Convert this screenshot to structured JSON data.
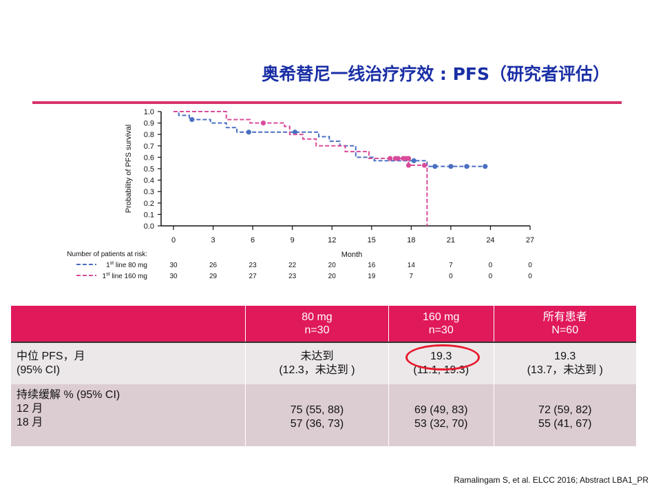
{
  "title": "奥希替尼一线治疗疗效 : PFS（研究者评估）",
  "chart_data": {
    "type": "line",
    "ylabel": "Probability of  PFS survival",
    "xlabel": "Month",
    "xlim": [
      0,
      27
    ],
    "ylim": [
      0,
      1.0
    ],
    "x_ticks": [
      0,
      3,
      6,
      9,
      12,
      15,
      18,
      21,
      24,
      27
    ],
    "y_ticks": [
      0.0,
      0.1,
      0.2,
      0.3,
      0.4,
      0.5,
      0.6,
      0.7,
      0.8,
      0.9,
      1.0
    ],
    "series": [
      {
        "name": "1st line 80 mg",
        "color": "#4a6fc1",
        "steps": [
          [
            0,
            1.0
          ],
          [
            0.4,
            0.967
          ],
          [
            1.2,
            0.93
          ],
          [
            2.8,
            0.9
          ],
          [
            4.0,
            0.86
          ],
          [
            4.8,
            0.82
          ],
          [
            11.0,
            0.78
          ],
          [
            11.8,
            0.74
          ],
          [
            12.6,
            0.7
          ],
          [
            13.8,
            0.6
          ],
          [
            15.2,
            0.57
          ],
          [
            19.2,
            0.52
          ],
          [
            23.6,
            0.52
          ]
        ],
        "censored": [
          [
            1.4,
            0.93
          ],
          [
            5.7,
            0.82
          ],
          [
            9.2,
            0.82
          ],
          [
            18.2,
            0.57
          ],
          [
            19.8,
            0.52
          ],
          [
            21.0,
            0.52
          ],
          [
            22.2,
            0.52
          ],
          [
            23.6,
            0.52
          ]
        ]
      },
      {
        "name": "1st line 160 mg",
        "color": "#d94b9a",
        "steps": [
          [
            0,
            1.0
          ],
          [
            4.0,
            0.93
          ],
          [
            5.8,
            0.9
          ],
          [
            8.4,
            0.87
          ],
          [
            8.8,
            0.8
          ],
          [
            9.8,
            0.76
          ],
          [
            10.8,
            0.7
          ],
          [
            13.0,
            0.65
          ],
          [
            14.8,
            0.59
          ],
          [
            17.8,
            0.53
          ],
          [
            19.2,
            0.0
          ]
        ],
        "censored": [
          [
            6.8,
            0.9
          ],
          [
            16.4,
            0.59
          ],
          [
            16.8,
            0.59
          ],
          [
            17.0,
            0.59
          ],
          [
            17.4,
            0.59
          ],
          [
            17.6,
            0.59
          ],
          [
            17.8,
            0.59
          ],
          [
            17.8,
            0.53
          ],
          [
            19.0,
            0.53
          ]
        ]
      }
    ],
    "risk_table": {
      "label": "Number of patients at risk:",
      "months": [
        0,
        3,
        6,
        9,
        12,
        15,
        18,
        21,
        24,
        27
      ],
      "rows": [
        {
          "sup": "st",
          "pre": "1",
          "post": " line 80 mg",
          "counts": [
            "30",
            "26",
            "23",
            "22",
            "20",
            "16",
            "14",
            "7",
            "0",
            "0"
          ]
        },
        {
          "sup": "st",
          "pre": "1",
          "post": " line 160 mg",
          "counts": [
            "30",
            "29",
            "27",
            "23",
            "20",
            "19",
            "7",
            "0",
            "0",
            "0"
          ]
        }
      ]
    }
  },
  "table": {
    "headers": [
      {
        "line1": "80 mg",
        "line2": "n=30"
      },
      {
        "line1": "160 mg",
        "line2": "n=30"
      },
      {
        "line1": "所有患者",
        "line2": "N=60"
      }
    ],
    "row1": {
      "label1": "中位   PFS，月",
      "label2": "(95% CI)",
      "cells": [
        {
          "line1": "未达到",
          "line2": "(12.3，未达到 )"
        },
        {
          "line1": "19.3",
          "line2": "(11.1, 19.3)"
        },
        {
          "line1": "19.3",
          "line2": "(13.7，未达到 )"
        }
      ]
    },
    "row2": {
      "label1": "持续缓解      % (95% CI)",
      "label2": "12  月",
      "label3": "18  月",
      "cells": [
        {
          "line1": "75 (55, 88)",
          "line2": "57 (36, 73)"
        },
        {
          "line1": "69 (49, 83)",
          "line2": "53 (32, 70)"
        },
        {
          "line1": "72 (59, 82)",
          "line2": "55 (41, 67)"
        }
      ]
    }
  },
  "citation": "Ramalingam S, et al. ELCC 2016; Abstract LBA1_PR"
}
